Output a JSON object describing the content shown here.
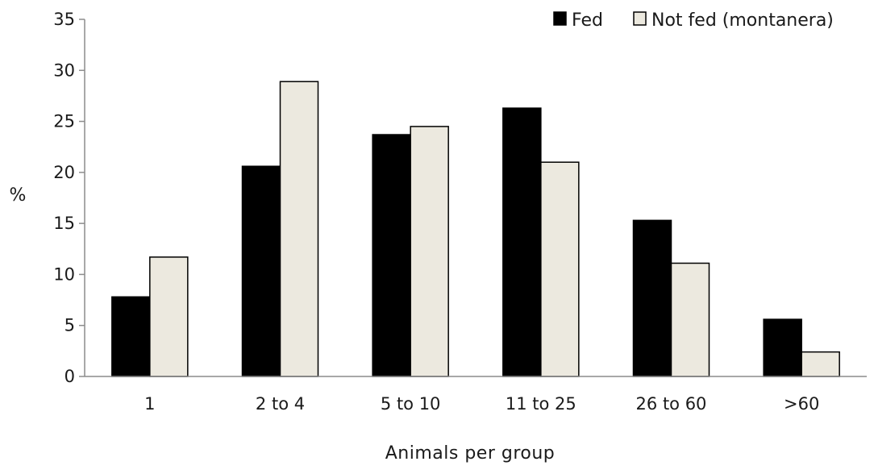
{
  "chart_data": {
    "type": "bar",
    "title": "",
    "xlabel": "Animals per group",
    "ylabel": "%",
    "ylim": [
      0,
      35
    ],
    "yticks": [
      0,
      5,
      10,
      15,
      20,
      25,
      30,
      35
    ],
    "grid": false,
    "legend_position": "top-right",
    "categories": [
      "1",
      "2 to 4",
      "5 to 10",
      "11 to 25",
      "26 to 60",
      ">60"
    ],
    "series": [
      {
        "name": "Fed",
        "color": "#000000",
        "values": [
          7.8,
          20.6,
          23.7,
          26.3,
          15.3,
          5.6
        ]
      },
      {
        "name": "Not fed (montanera)",
        "color": "#ece9df",
        "values": [
          11.7,
          28.9,
          24.5,
          21.0,
          11.1,
          2.4
        ]
      }
    ]
  }
}
